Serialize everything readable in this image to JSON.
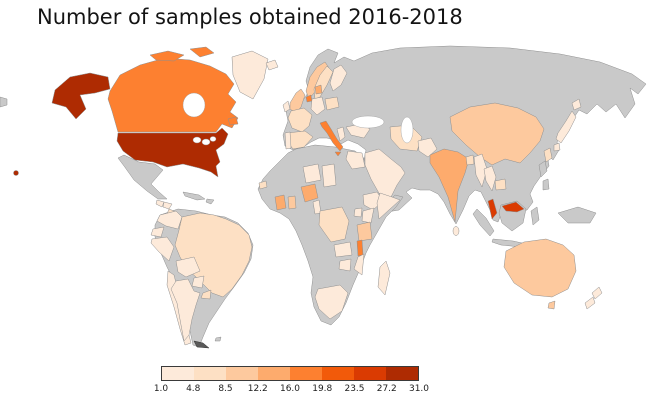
{
  "title": "Number of samples obtained 2016-2018",
  "chart_data": {
    "type": "choropleth_map",
    "title": "Number of samples obtained 2016-2018",
    "projection": "equirectangular world map",
    "no_data_color": "#c9c9c9",
    "border_color": "#8f8f8f",
    "colorbar": {
      "orientation": "horizontal",
      "boundaries": [
        1.0,
        4.8,
        8.5,
        12.2,
        16.0,
        19.8,
        23.5,
        27.2,
        31.0
      ],
      "tick_labels": [
        "1.0",
        "4.8",
        "8.5",
        "12.2",
        "16.0",
        "19.8",
        "23.5",
        "27.2",
        "31.0"
      ],
      "colors": [
        "#fdeada",
        "#fde0c4",
        "#fdc99e",
        "#fdab6d",
        "#fd8030",
        "#f25a0a",
        "#da3b02",
        "#ae2b02"
      ]
    },
    "countries": [
      {
        "id": "usa",
        "name": "United States",
        "value": 31
      },
      {
        "id": "canada",
        "name": "Canada",
        "value": 17
      },
      {
        "id": "greenland",
        "name": "Greenland",
        "value": 2
      },
      {
        "id": "mexico",
        "name": "Mexico",
        "value": null
      },
      {
        "id": "guatemala",
        "name": "Guatemala",
        "value": 2
      },
      {
        "id": "honduras",
        "name": "Honduras",
        "value": 2
      },
      {
        "id": "nicaragua",
        "name": "Nicaragua",
        "value": 5
      },
      {
        "id": "costa-rica",
        "name": "Costa Rica",
        "value": 6
      },
      {
        "id": "panama",
        "name": "Panama",
        "value": 9
      },
      {
        "id": "cuba",
        "name": "Cuba",
        "value": null
      },
      {
        "id": "hispaniola",
        "name": "Hispaniola",
        "value": null
      },
      {
        "id": "colombia",
        "name": "Colombia",
        "value": 2
      },
      {
        "id": "ecuador",
        "name": "Ecuador",
        "value": 3
      },
      {
        "id": "peru",
        "name": "Peru",
        "value": 2
      },
      {
        "id": "brazil",
        "name": "Brazil",
        "value": 6
      },
      {
        "id": "bolivia",
        "name": "Bolivia",
        "value": 2
      },
      {
        "id": "paraguay",
        "name": "Paraguay",
        "value": 3
      },
      {
        "id": "uruguay",
        "name": "Uruguay",
        "value": 5
      },
      {
        "id": "chile",
        "name": "Chile",
        "value": 2
      },
      {
        "id": "argentina",
        "name": "Argentina",
        "value": 2
      },
      {
        "id": "iceland",
        "name": "Iceland",
        "value": 2
      },
      {
        "id": "ireland",
        "name": "Ireland",
        "value": 2
      },
      {
        "id": "uk",
        "name": "United Kingdom",
        "value": 10
      },
      {
        "id": "portugal",
        "name": "Portugal",
        "value": 4
      },
      {
        "id": "spain",
        "name": "Spain",
        "value": 6
      },
      {
        "id": "france",
        "name": "France",
        "value": 6
      },
      {
        "id": "germany",
        "name": "Germany",
        "value": 3
      },
      {
        "id": "netherlands",
        "name": "Netherlands",
        "value": 17
      },
      {
        "id": "denmark",
        "name": "Denmark",
        "value": 14
      },
      {
        "id": "norway",
        "name": "Norway",
        "value": 10
      },
      {
        "id": "sweden",
        "name": "Sweden",
        "value": 7
      },
      {
        "id": "finland",
        "name": "Finland",
        "value": 4
      },
      {
        "id": "poland",
        "name": "Poland",
        "value": 5
      },
      {
        "id": "italy",
        "name": "Italy",
        "value": 17
      },
      {
        "id": "greece",
        "name": "Greece",
        "value": 3
      },
      {
        "id": "turkey",
        "name": "Turkey",
        "value": 3
      },
      {
        "id": "russia",
        "name": "Russia",
        "value": null
      },
      {
        "id": "saudi-arabia",
        "name": "Saudi Arabia",
        "value": 2
      },
      {
        "id": "iran",
        "name": "Iran",
        "value": 6
      },
      {
        "id": "pakistan",
        "name": "Pakistan",
        "value": 4
      },
      {
        "id": "india",
        "name": "India",
        "value": 13
      },
      {
        "id": "bangladesh",
        "name": "Bangladesh",
        "value": 8
      },
      {
        "id": "sri-lanka",
        "name": "Sri Lanka",
        "value": 3
      },
      {
        "id": "china",
        "name": "China",
        "value": 10
      },
      {
        "id": "south-korea",
        "name": "South Korea",
        "value": 6
      },
      {
        "id": "japan",
        "name": "Japan",
        "value": 3
      },
      {
        "id": "myanmar",
        "name": "Myanmar",
        "value": 3
      },
      {
        "id": "thailand",
        "name": "Thailand",
        "value": 4
      },
      {
        "id": "cambodia",
        "name": "Cambodia",
        "value": 8
      },
      {
        "id": "malaysia",
        "name": "Malaysia",
        "value": 25
      },
      {
        "id": "indonesia",
        "name": "Indonesia",
        "value": null
      },
      {
        "id": "philippines",
        "name": "Philippines",
        "value": null
      },
      {
        "id": "new-guinea",
        "name": "Papua New Guinea",
        "value": null
      },
      {
        "id": "australia",
        "name": "Australia",
        "value": 9
      },
      {
        "id": "new-zealand",
        "name": "New Zealand",
        "value": 4
      },
      {
        "id": "egypt",
        "name": "Egypt",
        "value": 3
      },
      {
        "id": "niger",
        "name": "Niger",
        "value": 2
      },
      {
        "id": "chad",
        "name": "Chad",
        "value": 2
      },
      {
        "id": "senegal",
        "name": "Senegal",
        "value": 8
      },
      {
        "id": "cote-divoire",
        "name": "Cote d'Ivoire",
        "value": 14
      },
      {
        "id": "ghana",
        "name": "Ghana",
        "value": 10
      },
      {
        "id": "nigeria",
        "name": "Nigeria",
        "value": 14
      },
      {
        "id": "cameroon",
        "name": "Cameroon",
        "value": 3
      },
      {
        "id": "ethiopia",
        "name": "Ethiopia",
        "value": 3
      },
      {
        "id": "somalia",
        "name": "Somalia",
        "value": 2
      },
      {
        "id": "kenya",
        "name": "Kenya",
        "value": 3
      },
      {
        "id": "uganda",
        "name": "Uganda",
        "value": 3
      },
      {
        "id": "dr-congo",
        "name": "DR Congo",
        "value": 6
      },
      {
        "id": "tanzania",
        "name": "Tanzania",
        "value": 12
      },
      {
        "id": "zambia",
        "name": "Zambia",
        "value": 3
      },
      {
        "id": "malawi",
        "name": "Malawi",
        "value": 17
      },
      {
        "id": "mozambique",
        "name": "Mozambique",
        "value": 3
      },
      {
        "id": "zimbabwe",
        "name": "Zimbabwe",
        "value": 3
      },
      {
        "id": "south-africa",
        "name": "South Africa",
        "value": 4
      },
      {
        "id": "madagascar",
        "name": "Madagascar",
        "value": 4
      }
    ]
  }
}
